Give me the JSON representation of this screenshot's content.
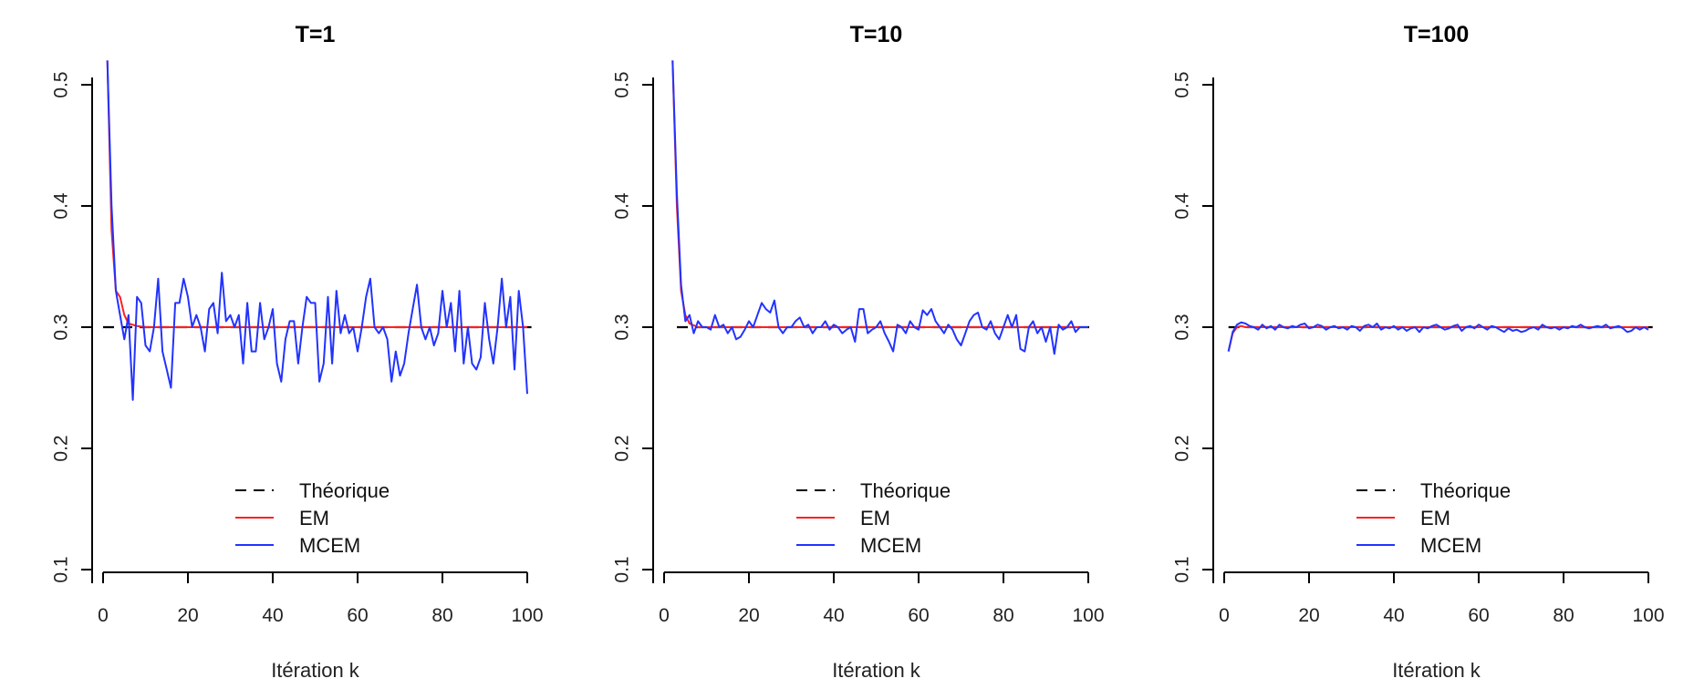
{
  "chart_data": [
    {
      "type": "line",
      "title": "T=1",
      "xlabel": "Itération k",
      "ylabel": "",
      "xlim": [
        0,
        100
      ],
      "ylim": [
        0.1,
        0.5
      ],
      "xticks": [
        "0",
        "20",
        "40",
        "60",
        "80",
        "100"
      ],
      "yticks": [
        "0.1",
        "0.2",
        "0.3",
        "0.4",
        "0.5"
      ],
      "legend_position": "bottom-center",
      "series": [
        {
          "name": "Théorique",
          "color": "#000000",
          "dash": "dashed",
          "x": [
            0,
            101
          ],
          "y": [
            0.3,
            0.3
          ]
        },
        {
          "name": "EM",
          "color": "#ff2020",
          "dash": "solid",
          "x": [
            1,
            2,
            3,
            4,
            5,
            6,
            8,
            10,
            15,
            20,
            30,
            40,
            60,
            80,
            100
          ],
          "y": [
            0.52,
            0.38,
            0.33,
            0.325,
            0.31,
            0.303,
            0.301,
            0.3,
            0.3,
            0.3,
            0.3,
            0.3,
            0.3,
            0.3,
            0.3
          ]
        },
        {
          "name": "MCEM",
          "color": "#2233ff",
          "dash": "solid",
          "x": [
            1,
            2,
            3,
            4,
            5,
            6,
            7,
            8,
            9,
            10,
            11,
            12,
            13,
            14,
            15,
            16,
            17,
            18,
            19,
            20,
            21,
            22,
            23,
            24,
            25,
            26,
            27,
            28,
            29,
            30,
            31,
            32,
            33,
            34,
            35,
            36,
            37,
            38,
            39,
            40,
            41,
            42,
            43,
            44,
            45,
            46,
            47,
            48,
            49,
            50,
            51,
            52,
            53,
            54,
            55,
            56,
            57,
            58,
            59,
            60,
            61,
            62,
            63,
            64,
            65,
            66,
            67,
            68,
            69,
            70,
            71,
            72,
            73,
            74,
            75,
            76,
            77,
            78,
            79,
            80,
            81,
            82,
            83,
            84,
            85,
            86,
            87,
            88,
            89,
            90,
            91,
            92,
            93,
            94,
            95,
            96,
            97,
            98,
            99,
            100
          ],
          "y": [
            0.52,
            0.4,
            0.33,
            0.31,
            0.29,
            0.31,
            0.24,
            0.325,
            0.32,
            0.285,
            0.28,
            0.3,
            0.34,
            0.28,
            0.265,
            0.25,
            0.32,
            0.32,
            0.34,
            0.325,
            0.3,
            0.31,
            0.3,
            0.28,
            0.315,
            0.32,
            0.295,
            0.345,
            0.305,
            0.31,
            0.3,
            0.31,
            0.27,
            0.32,
            0.28,
            0.28,
            0.32,
            0.29,
            0.3,
            0.315,
            0.27,
            0.255,
            0.29,
            0.305,
            0.305,
            0.27,
            0.3,
            0.325,
            0.32,
            0.32,
            0.255,
            0.27,
            0.325,
            0.27,
            0.33,
            0.295,
            0.31,
            0.295,
            0.3,
            0.28,
            0.3,
            0.325,
            0.34,
            0.3,
            0.295,
            0.3,
            0.29,
            0.255,
            0.28,
            0.26,
            0.27,
            0.295,
            0.315,
            0.335,
            0.3,
            0.29,
            0.3,
            0.285,
            0.295,
            0.33,
            0.3,
            0.32,
            0.28,
            0.33,
            0.27,
            0.3,
            0.27,
            0.265,
            0.275,
            0.32,
            0.29,
            0.27,
            0.3,
            0.34,
            0.3,
            0.325,
            0.265,
            0.33,
            0.3,
            0.245
          ]
        }
      ]
    },
    {
      "type": "line",
      "title": "T=10",
      "xlabel": "Itération k",
      "ylabel": "",
      "xlim": [
        0,
        100
      ],
      "ylim": [
        0.1,
        0.5
      ],
      "xticks": [
        "0",
        "20",
        "40",
        "60",
        "80",
        "100"
      ],
      "yticks": [
        "0.1",
        "0.2",
        "0.3",
        "0.4",
        "0.5"
      ],
      "legend_position": "bottom-center",
      "series": [
        {
          "name": "Théorique",
          "color": "#000000",
          "dash": "dashed",
          "x": [
            3,
            101
          ],
          "y": [
            0.3,
            0.3
          ]
        },
        {
          "name": "EM",
          "color": "#ff2020",
          "dash": "solid",
          "x": [
            2,
            3,
            4,
            5,
            6,
            8,
            10,
            20,
            40,
            60,
            80,
            100
          ],
          "y": [
            0.52,
            0.4,
            0.33,
            0.31,
            0.303,
            0.3,
            0.3,
            0.3,
            0.3,
            0.3,
            0.3,
            0.3
          ]
        },
        {
          "name": "MCEM",
          "color": "#2233ff",
          "dash": "solid",
          "x": [
            2,
            3,
            4,
            5,
            6,
            7,
            8,
            9,
            10,
            11,
            12,
            13,
            14,
            15,
            16,
            17,
            18,
            19,
            20,
            21,
            22,
            23,
            24,
            25,
            26,
            27,
            28,
            29,
            30,
            31,
            32,
            33,
            34,
            35,
            36,
            37,
            38,
            39,
            40,
            41,
            42,
            43,
            44,
            45,
            46,
            47,
            48,
            49,
            50,
            51,
            52,
            53,
            54,
            55,
            56,
            57,
            58,
            59,
            60,
            61,
            62,
            63,
            64,
            65,
            66,
            67,
            68,
            69,
            70,
            71,
            72,
            73,
            74,
            75,
            76,
            77,
            78,
            79,
            80,
            81,
            82,
            83,
            84,
            85,
            86,
            87,
            88,
            89,
            90,
            91,
            92,
            93,
            94,
            95,
            96,
            97,
            98,
            99,
            100
          ],
          "y": [
            0.52,
            0.41,
            0.335,
            0.305,
            0.31,
            0.295,
            0.305,
            0.3,
            0.3,
            0.298,
            0.31,
            0.3,
            0.302,
            0.295,
            0.3,
            0.29,
            0.292,
            0.298,
            0.305,
            0.3,
            0.31,
            0.32,
            0.315,
            0.312,
            0.322,
            0.3,
            0.295,
            0.3,
            0.3,
            0.305,
            0.308,
            0.3,
            0.302,
            0.295,
            0.3,
            0.3,
            0.305,
            0.298,
            0.302,
            0.3,
            0.295,
            0.298,
            0.3,
            0.288,
            0.315,
            0.315,
            0.295,
            0.298,
            0.3,
            0.305,
            0.295,
            0.288,
            0.28,
            0.302,
            0.3,
            0.295,
            0.305,
            0.3,
            0.298,
            0.314,
            0.31,
            0.315,
            0.305,
            0.3,
            0.295,
            0.302,
            0.298,
            0.29,
            0.285,
            0.295,
            0.305,
            0.31,
            0.312,
            0.3,
            0.298,
            0.305,
            0.295,
            0.29,
            0.3,
            0.31,
            0.3,
            0.31,
            0.282,
            0.28,
            0.3,
            0.305,
            0.295,
            0.3,
            0.288,
            0.3,
            0.278,
            0.302,
            0.298,
            0.3,
            0.305,
            0.296,
            0.3,
            0.3,
            0.3
          ]
        }
      ]
    },
    {
      "type": "line",
      "title": "T=100",
      "xlabel": "Itération k",
      "ylabel": "",
      "xlim": [
        0,
        100
      ],
      "ylim": [
        0.1,
        0.5
      ],
      "xticks": [
        "0",
        "20",
        "40",
        "60",
        "80",
        "100"
      ],
      "yticks": [
        "0.1",
        "0.2",
        "0.3",
        "0.4",
        "0.5"
      ],
      "legend_position": "bottom-center",
      "series": [
        {
          "name": "Théorique",
          "color": "#000000",
          "dash": "dashed",
          "x": [
            1,
            101
          ],
          "y": [
            0.3,
            0.3
          ]
        },
        {
          "name": "EM",
          "color": "#ff2020",
          "dash": "solid",
          "x": [
            1,
            2,
            3,
            4,
            5,
            6,
            8,
            10,
            20,
            40,
            60,
            80,
            100
          ],
          "y": [
            0.28,
            0.295,
            0.3,
            0.301,
            0.3,
            0.3,
            0.3,
            0.3,
            0.3,
            0.3,
            0.3,
            0.3,
            0.3
          ]
        },
        {
          "name": "MCEM",
          "color": "#2233ff",
          "dash": "solid",
          "x": [
            1,
            2,
            3,
            4,
            5,
            6,
            7,
            8,
            9,
            10,
            11,
            12,
            13,
            14,
            15,
            16,
            17,
            18,
            19,
            20,
            21,
            22,
            23,
            24,
            25,
            26,
            27,
            28,
            29,
            30,
            31,
            32,
            33,
            34,
            35,
            36,
            37,
            38,
            39,
            40,
            41,
            42,
            43,
            44,
            45,
            46,
            47,
            48,
            49,
            50,
            51,
            52,
            53,
            54,
            55,
            56,
            57,
            58,
            59,
            60,
            61,
            62,
            63,
            64,
            65,
            66,
            67,
            68,
            69,
            70,
            71,
            72,
            73,
            74,
            75,
            76,
            77,
            78,
            79,
            80,
            81,
            82,
            83,
            84,
            85,
            86,
            87,
            88,
            89,
            90,
            91,
            92,
            93,
            94,
            95,
            96,
            97,
            98,
            99,
            100
          ],
          "y": [
            0.28,
            0.296,
            0.302,
            0.304,
            0.303,
            0.301,
            0.3,
            0.298,
            0.302,
            0.299,
            0.301,
            0.298,
            0.302,
            0.3,
            0.299,
            0.301,
            0.3,
            0.302,
            0.303,
            0.299,
            0.3,
            0.302,
            0.301,
            0.298,
            0.3,
            0.301,
            0.299,
            0.3,
            0.298,
            0.301,
            0.3,
            0.297,
            0.301,
            0.302,
            0.3,
            0.303,
            0.298,
            0.3,
            0.299,
            0.301,
            0.298,
            0.3,
            0.297,
            0.299,
            0.3,
            0.296,
            0.3,
            0.299,
            0.301,
            0.302,
            0.3,
            0.298,
            0.299,
            0.301,
            0.302,
            0.297,
            0.3,
            0.301,
            0.299,
            0.302,
            0.3,
            0.298,
            0.301,
            0.3,
            0.298,
            0.296,
            0.299,
            0.297,
            0.298,
            0.296,
            0.297,
            0.299,
            0.3,
            0.298,
            0.302,
            0.3,
            0.299,
            0.3,
            0.298,
            0.3,
            0.299,
            0.301,
            0.3,
            0.302,
            0.3,
            0.299,
            0.3,
            0.301,
            0.3,
            0.302,
            0.299,
            0.3,
            0.301,
            0.299,
            0.296,
            0.297,
            0.3,
            0.298,
            0.3,
            0.298
          ]
        }
      ]
    }
  ]
}
